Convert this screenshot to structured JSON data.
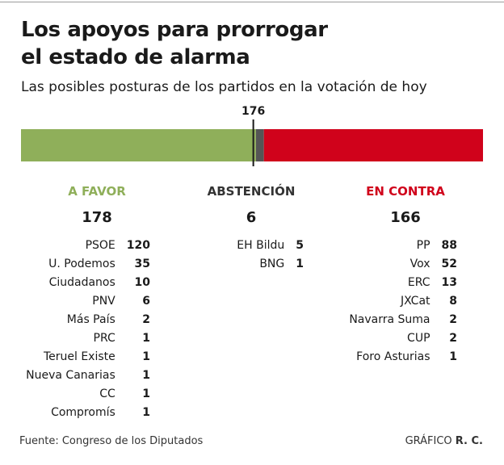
{
  "header": {
    "title_line1": "Los apoyos para prorrogar",
    "title_line2": "el estado de alarma",
    "subtitle": "Las posibles posturas de los partidos en la votación de hoy"
  },
  "chart_data": {
    "type": "bar",
    "stacked": true,
    "orientation": "horizontal",
    "majority_marker": {
      "label": "176",
      "value": 176
    },
    "total": 350,
    "colors": {
      "a_favor": "#8faf5a",
      "abstencion": "#555555",
      "en_contra": "#d0021b"
    },
    "groups": [
      {
        "key": "a_favor",
        "label": "A FAVOR",
        "total": 178,
        "color": "#8faf5a",
        "parties": [
          {
            "name": "PSOE",
            "value": 120
          },
          {
            "name": "U. Podemos",
            "value": 35
          },
          {
            "name": "Ciudadanos",
            "value": 10
          },
          {
            "name": "PNV",
            "value": 6
          },
          {
            "name": "Más País",
            "value": 2
          },
          {
            "name": "PRC",
            "value": 1
          },
          {
            "name": "Teruel Existe",
            "value": 1
          },
          {
            "name": "Nueva Canarias",
            "value": 1
          },
          {
            "name": "CC",
            "value": 1
          },
          {
            "name": "Compromís",
            "value": 1
          }
        ]
      },
      {
        "key": "abstencion",
        "label": "ABSTENCIÓN",
        "total": 6,
        "color": "#333333",
        "parties": [
          {
            "name": "EH Bildu",
            "value": 5
          },
          {
            "name": "BNG",
            "value": 1
          }
        ]
      },
      {
        "key": "en_contra",
        "label": "EN CONTRA",
        "total": 166,
        "color": "#d0021b",
        "parties": [
          {
            "name": "PP",
            "value": 88
          },
          {
            "name": "Vox",
            "value": 52
          },
          {
            "name": "ERC",
            "value": 13
          },
          {
            "name": "JXCat",
            "value": 8
          },
          {
            "name": "Navarra Suma",
            "value": 2
          },
          {
            "name": "CUP",
            "value": 2
          },
          {
            "name": "Foro Asturias",
            "value": 1
          }
        ]
      }
    ]
  },
  "footer": {
    "source": "Fuente: Congreso de los Diputados",
    "credit_prefix": "GRÁFICO",
    "credit_author": "R. C."
  }
}
